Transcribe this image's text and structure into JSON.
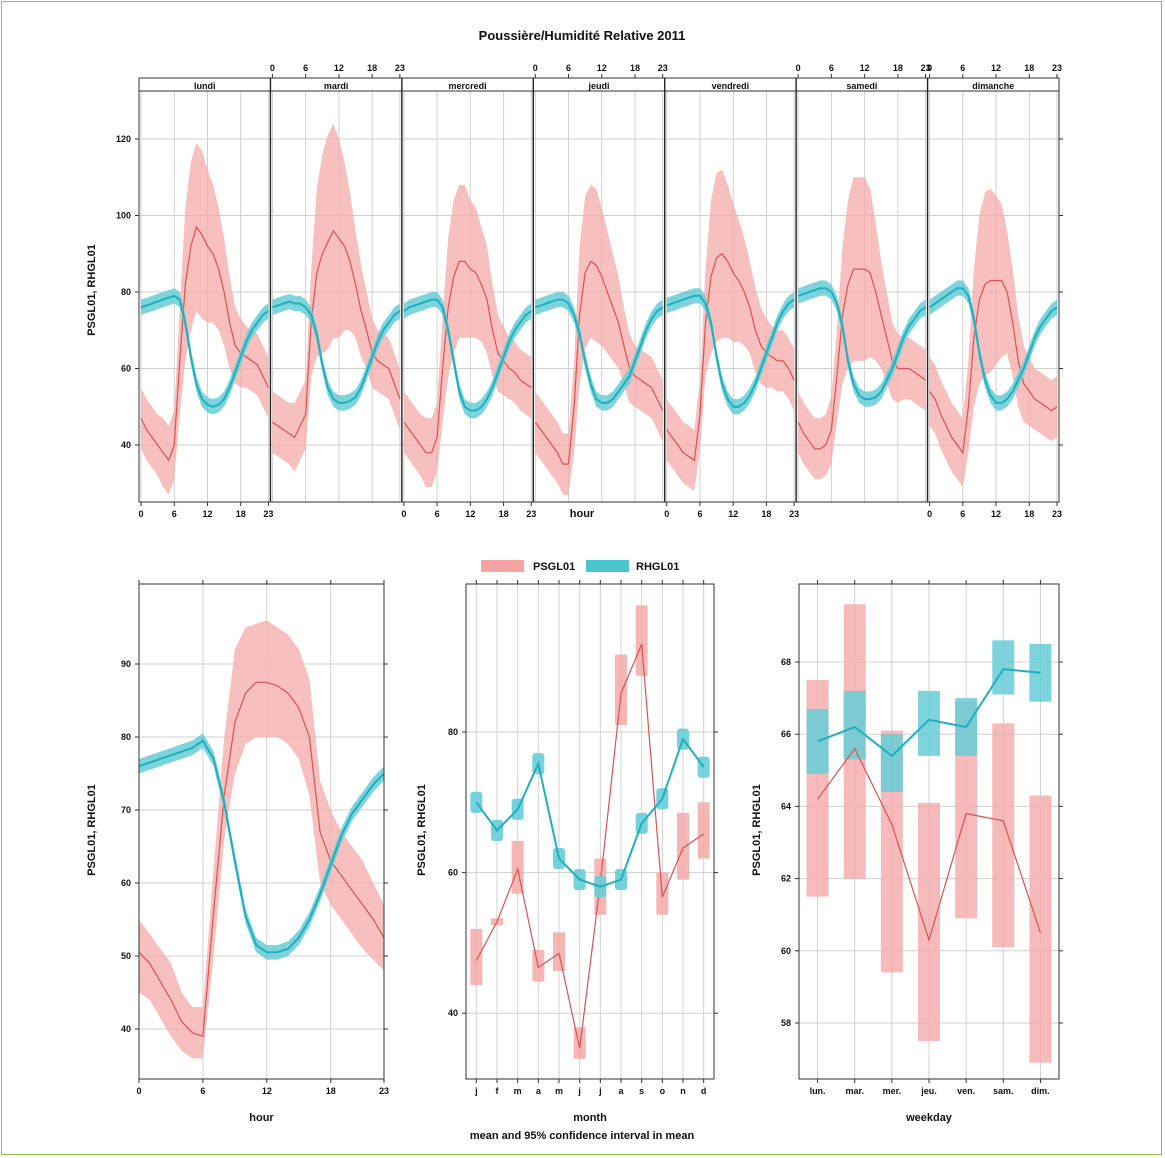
{
  "title": "Poussière/Humidité Relative 2011",
  "colors": {
    "PSGL01": "#f08080",
    "RHGL01": "#20b2bf"
  },
  "legend": [
    {
      "name": "PSGL01",
      "color": "#f08080"
    },
    {
      "name": "RHGL01",
      "color": "#20b2bf"
    }
  ],
  "note": "mean and 95% confidence interval in mean",
  "chart_data": [
    {
      "type": "line",
      "panel": "hour-weekday",
      "ylabel": "PSGL01, RHGL01",
      "xlabel": "hour",
      "ylim": [
        22,
        130
      ],
      "yticks": [
        40,
        60,
        80,
        100,
        120
      ],
      "hour_ticks": [
        0,
        6,
        12,
        18,
        23
      ],
      "days": [
        "lundi",
        "mardi",
        "mercredi",
        "jeudi",
        "vendredi",
        "samedi",
        "dimanche"
      ],
      "top_hour_label_days": [
        1,
        3,
        5,
        6
      ],
      "bottom_hour_label_days": [
        0,
        2,
        4,
        6
      ],
      "series": [
        {
          "name": "PSGL01",
          "values": [
            [
              47,
              44,
              42,
              40,
              38,
              36,
              40,
              62,
              82,
              92,
              97,
              95,
              92,
              90,
              86,
              80,
              72,
              66,
              64,
              63,
              62,
              61,
              58,
              55
            ],
            [
              46,
              45,
              44,
              43,
              42,
              45,
              48,
              72,
              85,
              90,
              93,
              96,
              94,
              92,
              88,
              82,
              75,
              70,
              64,
              62,
              61,
              60,
              56,
              52
            ],
            [
              46,
              44,
              42,
              40,
              38,
              38,
              42,
              60,
              76,
              84,
              88,
              88,
              86,
              85,
              82,
              78,
              70,
              64,
              62,
              60,
              59,
              57,
              56,
              55
            ],
            [
              46,
              44,
              42,
              40,
              38,
              35,
              35,
              50,
              74,
              85,
              88,
              87,
              84,
              80,
              76,
              72,
              66,
              60,
              58,
              57,
              56,
              55,
              52,
              49
            ],
            [
              44,
              42,
              40,
              38,
              37,
              36,
              48,
              72,
              84,
              89,
              90,
              88,
              85,
              83,
              80,
              76,
              70,
              66,
              64,
              63,
              62,
              62,
              60,
              57
            ],
            [
              46,
              43,
              41,
              39,
              39,
              40,
              44,
              58,
              74,
              82,
              86,
              86,
              86,
              85,
              80,
              74,
              68,
              62,
              60,
              60,
              60,
              59,
              58,
              57
            ],
            [
              54,
              52,
              48,
              45,
              42,
              40,
              38,
              50,
              68,
              78,
              82,
              83,
              83,
              83,
              80,
              72,
              62,
              56,
              54,
              52,
              51,
              50,
              49,
              50
            ]
          ],
          "ci_halfwidth": [
            [
              8,
              8,
              8,
              8,
              9,
              9,
              9,
              14,
              20,
              22,
              22,
              22,
              20,
              18,
              16,
              14,
              12,
              10,
              9,
              8,
              8,
              8,
              8,
              8
            ],
            [
              8,
              8,
              8,
              8,
              9,
              9,
              9,
              14,
              22,
              26,
              28,
              28,
              26,
              22,
              18,
              14,
              12,
              10,
              9,
              8,
              8,
              8,
              8,
              8
            ],
            [
              8,
              8,
              8,
              8,
              9,
              9,
              9,
              14,
              18,
              20,
              20,
              20,
              18,
              17,
              15,
              14,
              12,
              10,
              9,
              8,
              8,
              8,
              8,
              8
            ],
            [
              8,
              8,
              8,
              8,
              8,
              8,
              8,
              12,
              18,
              20,
              20,
              20,
              18,
              16,
              14,
              12,
              10,
              9,
              8,
              8,
              8,
              8,
              8,
              8
            ],
            [
              8,
              8,
              8,
              8,
              8,
              8,
              9,
              14,
              20,
              22,
              22,
              20,
              18,
              16,
              14,
              12,
              11,
              10,
              9,
              8,
              8,
              8,
              8,
              8
            ],
            [
              8,
              8,
              8,
              8,
              8,
              8,
              9,
              12,
              18,
              22,
              24,
              24,
              24,
              22,
              18,
              14,
              12,
              10,
              9,
              8,
              8,
              8,
              8,
              8
            ],
            [
              9,
              9,
              9,
              9,
              9,
              9,
              9,
              12,
              18,
              22,
              24,
              24,
              22,
              20,
              16,
              14,
              12,
              10,
              9,
              8,
              8,
              8,
              8,
              8
            ]
          ]
        },
        {
          "name": "RHGL01",
          "values": [
            [
              76,
              76.5,
              77,
              77.5,
              78,
              78.5,
              79,
              78,
              72,
              63,
              56,
              52,
              50.5,
              50,
              50.5,
              52,
              55,
              59,
              63,
              67,
              70,
              72,
              74,
              75
            ],
            [
              76,
              76.5,
              77,
              77.5,
              77,
              77,
              76,
              74,
              69,
              61,
              55,
              52,
              51,
              51,
              51.5,
              52.5,
              55,
              59,
              63,
              67,
              70,
              72,
              74,
              75
            ],
            [
              75,
              76,
              76.5,
              77,
              77.5,
              78,
              78,
              76,
              70,
              62,
              54,
              50,
              49,
              49,
              50,
              52,
              55,
              59,
              63,
              67,
              70,
              72,
              74,
              75
            ],
            [
              76,
              76.5,
              77,
              77.5,
              78,
              78,
              77,
              74,
              69,
              62,
              56,
              52,
              51,
              51,
              52,
              54,
              56,
              58,
              62,
              66,
              70,
              73,
              75,
              76
            ],
            [
              76.5,
              77,
              77.5,
              78,
              78.5,
              79,
              79,
              77,
              72,
              63,
              56,
              52,
              50,
              50,
              51,
              53,
              56,
              60,
              64,
              68,
              72,
              75,
              77,
              78
            ],
            [
              79,
              79.5,
              80,
              80.5,
              81,
              81,
              80,
              77,
              71,
              62,
              56,
              53,
              52,
              52,
              52.5,
              54,
              57,
              60,
              64,
              68,
              71,
              73,
              75,
              76
            ],
            [
              76,
              77,
              78,
              79,
              80,
              81,
              81,
              79,
              73,
              64,
              57,
              53,
              51,
              51,
              52,
              54,
              57,
              60,
              64,
              68,
              71,
              73,
              75,
              76
            ]
          ],
          "ci_halfwidth": 2
        }
      ]
    },
    {
      "type": "line",
      "panel": "hour",
      "ylabel": "PSGL01, RHGL01",
      "xlabel": "hour",
      "x": [
        0,
        1,
        2,
        3,
        4,
        5,
        6,
        7,
        8,
        9,
        10,
        11,
        12,
        13,
        14,
        15,
        16,
        17,
        18,
        19,
        20,
        21,
        22,
        23
      ],
      "xticks": [
        0,
        6,
        12,
        18,
        23
      ],
      "ylim": [
        33.5,
        99
      ],
      "yticks": [
        40,
        50,
        60,
        70,
        80,
        90
      ],
      "series": [
        {
          "name": "PSGL01",
          "values": [
            50.5,
            49,
            46.5,
            44,
            41,
            39.5,
            39,
            56,
            72,
            82,
            86,
            87.5,
            87.5,
            87,
            86,
            84,
            80,
            67,
            63,
            61,
            59,
            57,
            55,
            52.5
          ],
          "lower": [
            45,
            44,
            41.5,
            39,
            37,
            36,
            36,
            50,
            66,
            75,
            79,
            80,
            80,
            80,
            79,
            77,
            72,
            60,
            57,
            55,
            53,
            51,
            49.5,
            48
          ],
          "upper": [
            55,
            53,
            51,
            49,
            45,
            43,
            43,
            62,
            80,
            92,
            95,
            95.5,
            96,
            95,
            94,
            92,
            88,
            74,
            70,
            67,
            65,
            63,
            60,
            57
          ]
        },
        {
          "name": "RHGL01",
          "values": [
            76,
            76.5,
            77,
            77.5,
            78,
            78.5,
            79.5,
            77,
            71,
            63,
            55.5,
            51.5,
            50.5,
            50.5,
            51,
            52.5,
            55,
            58.5,
            62.5,
            66.5,
            69.5,
            71.5,
            73.5,
            75
          ],
          "ci_halfwidth": 1
        }
      ]
    },
    {
      "type": "line",
      "panel": "month",
      "ylabel": "PSGL01, RHGL01",
      "xlabel": "month",
      "categories": [
        "j",
        "f",
        "m",
        "a",
        "m",
        "j",
        "j",
        "a",
        "s",
        "o",
        "n",
        "d"
      ],
      "ylim": [
        30,
        99
      ],
      "yticks": [
        40,
        60,
        80
      ],
      "series": [
        {
          "name": "PSGL01",
          "values": [
            47.5,
            53,
            60.5,
            46.5,
            48.5,
            35,
            58.5,
            85.5,
            92.5,
            56.5,
            63.5,
            65.5
          ],
          "lower": [
            44,
            52.5,
            57,
            44.5,
            46,
            33.5,
            54,
            81,
            88,
            54,
            59,
            62
          ],
          "upper": [
            52,
            53.5,
            64.5,
            49,
            51.5,
            38,
            62,
            91,
            98,
            60,
            68.5,
            70
          ]
        },
        {
          "name": "RHGL01",
          "values": [
            70,
            66,
            69,
            75.5,
            62,
            59,
            58,
            59,
            67,
            70.5,
            79,
            75
          ],
          "lower": [
            68.5,
            64.5,
            67.5,
            74,
            60.5,
            57.5,
            56.5,
            57.5,
            65.5,
            69,
            77.5,
            73.5
          ],
          "upper": [
            71.5,
            67.5,
            70.5,
            77,
            63.5,
            60.5,
            59.5,
            60.5,
            68.5,
            72,
            80.5,
            76.5
          ]
        }
      ]
    },
    {
      "type": "line",
      "panel": "weekday",
      "ylabel": "PSGL01, RHGL01",
      "xlabel": "weekday",
      "categories": [
        "lun.",
        "mar.",
        "mer.",
        "jeu.",
        "ven.",
        "sam.",
        "dim."
      ],
      "ylim": [
        56.3,
        69.9
      ],
      "yticks": [
        58,
        60,
        62,
        64,
        66,
        68
      ],
      "series": [
        {
          "name": "PSGL01",
          "values": [
            64.2,
            65.6,
            63.5,
            60.3,
            63.8,
            63.6,
            60.5
          ],
          "lower": [
            61.5,
            62,
            59.4,
            57.5,
            60.9,
            60.1,
            56.9
          ],
          "upper": [
            67.5,
            69.6,
            66.1,
            64.1,
            66.9,
            66.3,
            64.3
          ]
        },
        {
          "name": "RHGL01",
          "values": [
            65.8,
            66.2,
            65.4,
            66.4,
            66.2,
            67.8,
            67.7
          ],
          "lower": [
            64.9,
            65.3,
            64.4,
            65.4,
            65.4,
            67.1,
            66.9
          ],
          "upper": [
            66.7,
            67.2,
            66,
            67.2,
            67,
            68.6,
            68.5
          ]
        }
      ]
    }
  ]
}
